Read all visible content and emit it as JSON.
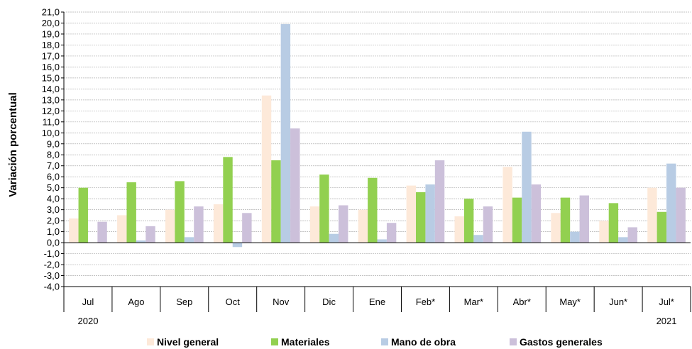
{
  "chart_data": {
    "type": "bar",
    "title": "",
    "xlabel": "",
    "ylabel": "Variación porcentual",
    "ylim": [
      -4,
      21
    ],
    "ytick_step": 1,
    "grid": true,
    "legend_position": "bottom",
    "categories": [
      "Jul",
      "Ago",
      "Sep",
      "Oct",
      "Nov",
      "Dic",
      "Ene",
      "Feb*",
      "Mar*",
      "Abr*",
      "May*",
      "Jun*",
      "Jul*"
    ],
    "year_labels": [
      {
        "category_index": 0,
        "label": "2020"
      },
      {
        "category_index": 12,
        "label": "2021"
      }
    ],
    "series": [
      {
        "name": "Nivel general",
        "color": "#fde9d9",
        "values": [
          2.2,
          2.5,
          3.0,
          3.5,
          13.4,
          3.3,
          3.0,
          5.2,
          2.4,
          6.9,
          2.7,
          2.0,
          5.0
        ]
      },
      {
        "name": "Materiales",
        "color": "#92d050",
        "values": [
          5.0,
          5.5,
          5.6,
          7.8,
          7.5,
          6.2,
          5.9,
          4.6,
          4.0,
          4.1,
          4.1,
          3.6,
          2.8
        ]
      },
      {
        "name": "Mano de obra",
        "color": "#b8cce4",
        "values": [
          0.0,
          0.2,
          0.5,
          -0.4,
          19.9,
          0.8,
          0.3,
          5.3,
          0.7,
          10.1,
          1.0,
          0.5,
          7.2
        ]
      },
      {
        "name": "Gastos generales",
        "color": "#ccc0da",
        "values": [
          1.9,
          1.5,
          3.3,
          2.7,
          10.4,
          3.4,
          1.8,
          7.5,
          3.3,
          5.3,
          4.3,
          1.4,
          5.0
        ]
      }
    ]
  }
}
